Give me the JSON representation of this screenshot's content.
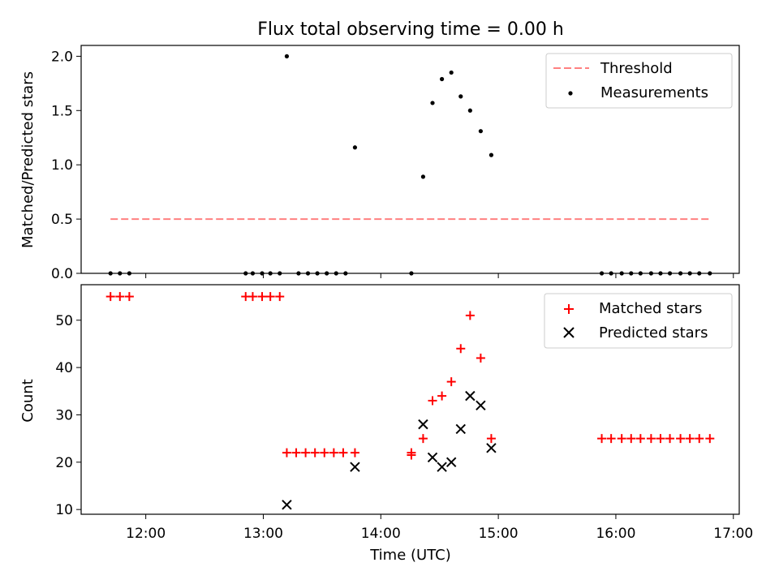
{
  "chart_data": [
    {
      "type": "scatter",
      "title": "Flux total observing time = 0.00 h",
      "xlabel": "",
      "ylabel": "Matched/Predicted stars",
      "ylim": [
        0,
        2.1
      ],
      "xlim": [
        11.45,
        17.05
      ],
      "yticks": [
        0.0,
        0.5,
        1.0,
        1.5,
        2.0
      ],
      "ytick_labels": [
        "0.0",
        "0.5",
        "1.0",
        "1.5",
        "2.0"
      ],
      "legend": {
        "placement": "top-right",
        "entries": [
          "Threshold",
          "Measurements"
        ]
      },
      "threshold": {
        "name": "Threshold",
        "value": 0.5,
        "x_start": 11.7,
        "x_end": 16.8,
        "color": "#ff8080",
        "style": "dashed"
      },
      "series": [
        {
          "name": "Measurements",
          "color": "#000000",
          "marker": "dot",
          "points": [
            [
              11.7,
              0
            ],
            [
              11.78,
              0
            ],
            [
              11.86,
              0
            ],
            [
              12.85,
              0
            ],
            [
              12.91,
              0
            ],
            [
              12.99,
              0
            ],
            [
              13.06,
              0
            ],
            [
              13.14,
              0
            ],
            [
              13.2,
              2.0
            ],
            [
              13.3,
              0
            ],
            [
              13.38,
              0
            ],
            [
              13.46,
              0
            ],
            [
              13.54,
              0
            ],
            [
              13.62,
              0
            ],
            [
              13.7,
              0
            ],
            [
              13.78,
              1.16
            ],
            [
              14.26,
              0
            ],
            [
              14.36,
              0.89
            ],
            [
              14.44,
              1.57
            ],
            [
              14.52,
              1.79
            ],
            [
              14.6,
              1.85
            ],
            [
              14.68,
              1.63
            ],
            [
              14.76,
              1.5
            ],
            [
              14.85,
              1.31
            ],
            [
              14.94,
              1.09
            ],
            [
              15.88,
              0
            ],
            [
              15.96,
              0
            ],
            [
              16.05,
              0
            ],
            [
              16.13,
              0
            ],
            [
              16.21,
              0
            ],
            [
              16.3,
              0
            ],
            [
              16.38,
              0
            ],
            [
              16.46,
              0
            ],
            [
              16.55,
              0
            ],
            [
              16.63,
              0
            ],
            [
              16.71,
              0
            ],
            [
              16.8,
              0
            ]
          ]
        }
      ]
    },
    {
      "type": "scatter",
      "title": "",
      "xlabel": "Time (UTC)",
      "ylabel": "Count",
      "ylim": [
        9,
        57.5
      ],
      "xlim": [
        11.45,
        17.05
      ],
      "yticks": [
        10,
        20,
        30,
        40,
        50
      ],
      "ytick_labels": [
        "10",
        "20",
        "30",
        "40",
        "50"
      ],
      "xticks": [
        12,
        13,
        14,
        15,
        16,
        17
      ],
      "xtick_labels": [
        "12:00",
        "13:00",
        "14:00",
        "15:00",
        "16:00",
        "17:00"
      ],
      "legend": {
        "placement": "top-right",
        "entries": [
          "Matched stars",
          "Predicted stars"
        ]
      },
      "series": [
        {
          "name": "Matched stars",
          "color": "#ff0000",
          "marker": "plus",
          "points": [
            [
              11.7,
              55
            ],
            [
              11.78,
              55
            ],
            [
              11.86,
              55
            ],
            [
              12.85,
              55
            ],
            [
              12.91,
              55
            ],
            [
              12.99,
              55
            ],
            [
              13.06,
              55
            ],
            [
              13.14,
              55
            ],
            [
              13.2,
              22
            ],
            [
              13.28,
              22
            ],
            [
              13.36,
              22
            ],
            [
              13.44,
              22
            ],
            [
              13.52,
              22
            ],
            [
              13.6,
              22
            ],
            [
              13.68,
              22
            ],
            [
              13.78,
              22
            ],
            [
              14.26,
              22
            ],
            [
              14.26,
              21.5
            ],
            [
              14.36,
              25
            ],
            [
              14.44,
              33
            ],
            [
              14.52,
              34
            ],
            [
              14.6,
              37
            ],
            [
              14.68,
              44
            ],
            [
              14.76,
              51
            ],
            [
              14.85,
              42
            ],
            [
              14.94,
              25
            ],
            [
              15.88,
              25
            ],
            [
              15.96,
              25
            ],
            [
              16.05,
              25
            ],
            [
              16.13,
              25
            ],
            [
              16.21,
              25
            ],
            [
              16.3,
              25
            ],
            [
              16.38,
              25
            ],
            [
              16.46,
              25
            ],
            [
              16.55,
              25
            ],
            [
              16.63,
              25
            ],
            [
              16.71,
              25
            ],
            [
              16.8,
              25
            ]
          ]
        },
        {
          "name": "Predicted stars",
          "color": "#000000",
          "marker": "x",
          "points": [
            [
              13.2,
              11
            ],
            [
              13.78,
              19
            ],
            [
              14.36,
              28
            ],
            [
              14.44,
              21
            ],
            [
              14.52,
              19
            ],
            [
              14.6,
              20
            ],
            [
              14.68,
              27
            ],
            [
              14.76,
              34
            ],
            [
              14.85,
              32
            ],
            [
              14.94,
              23
            ]
          ]
        }
      ]
    }
  ]
}
